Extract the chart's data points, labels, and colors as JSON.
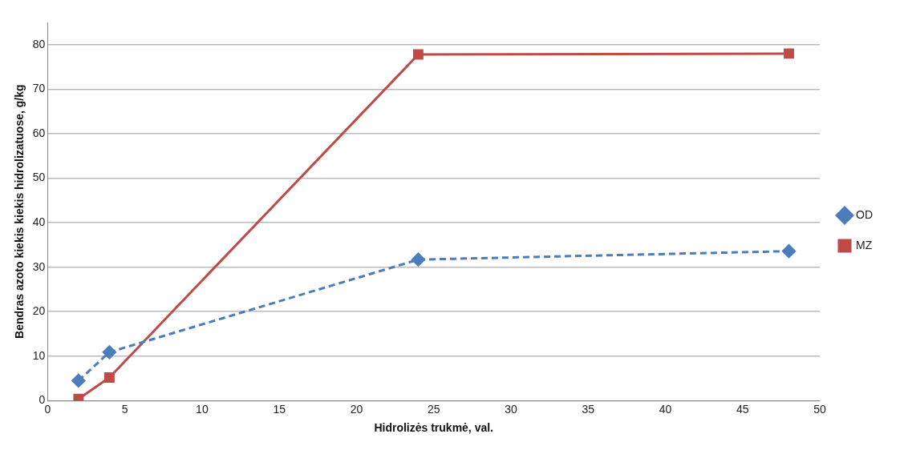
{
  "chart_data": {
    "type": "line",
    "xlabel": "Hidrolizės trukmė, val.",
    "ylabel": "Bendras azoto kiekis kiekis hidrolizatuose, g/kg",
    "x": [
      2,
      4,
      24,
      48
    ],
    "series": [
      {
        "name": "OD",
        "color": "#4a7ebb",
        "values": [
          4.5,
          10.9,
          31.7,
          33.6
        ],
        "marker": "diamond",
        "line_style": "dashed"
      },
      {
        "name": "MZ",
        "color": "#be4b48",
        "values": [
          0.4,
          5.2,
          77.8,
          78.0
        ],
        "marker": "square",
        "line_style": "solid"
      }
    ],
    "xlim": [
      0,
      50
    ],
    "xticks": [
      0,
      5,
      10,
      15,
      20,
      25,
      30,
      35,
      40,
      45,
      50
    ],
    "ylim": [
      0,
      85
    ],
    "yticks": [
      0,
      10,
      20,
      30,
      40,
      50,
      60,
      70,
      80
    ],
    "grid": "y",
    "legend": "right"
  }
}
